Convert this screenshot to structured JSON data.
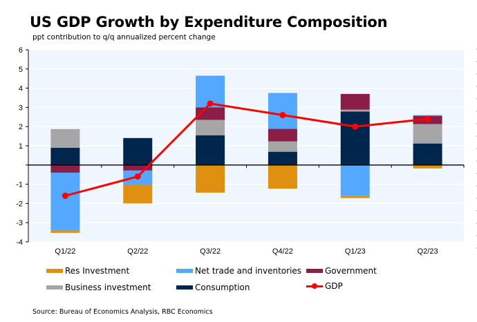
{
  "header": {
    "title": "US GDP Growth by Expenditure Composition",
    "subtitle": "ppt contribution to q/q annualized percent change"
  },
  "source": "Source: Bureau of Economics Analysis, RBC Economics",
  "chart_data": {
    "type": "bar",
    "stacked": true,
    "title": "US GDP Growth by Expenditure Composition",
    "subtitle": "ppt contribution to q/q annualized percent change",
    "xlabel": "",
    "ylabel": "",
    "ylim": [
      -4,
      6
    ],
    "yticks": [
      -4,
      -3,
      -2,
      -1,
      0,
      1,
      2,
      3,
      4,
      5,
      6
    ],
    "ytick_labels": [
      "-4",
      "-3",
      "-2",
      "-1",
      "",
      "1",
      "2",
      "3",
      "4",
      "5",
      "6"
    ],
    "grid": true,
    "legend_position": "bottom",
    "categories": [
      "Q1/22",
      "Q2/22",
      "Q3/22",
      "Q4/22",
      "Q1/23",
      "Q2/23"
    ],
    "series": [
      {
        "name": "Consumption",
        "color": "#00264d",
        "type": "bar",
        "values": [
          0.9,
          1.4,
          1.55,
          0.69,
          2.78,
          1.12
        ]
      },
      {
        "name": "Business investment",
        "color": "#a6a6a6",
        "type": "bar",
        "values": [
          0.97,
          0.02,
          0.8,
          0.54,
          0.1,
          1.01
        ]
      },
      {
        "name": "Government",
        "color": "#8b1e46",
        "type": "bar",
        "values": [
          -0.4,
          -0.29,
          0.65,
          0.65,
          0.82,
          0.43
        ]
      },
      {
        "name": "Net trade and inventories",
        "color": "#54a8ff",
        "type": "bar",
        "values": [
          -3.0,
          -0.76,
          1.65,
          1.87,
          -1.6,
          0.04
        ]
      },
      {
        "name": "Res Investment",
        "color": "#e09010",
        "type": "bar",
        "values": [
          -0.13,
          -0.95,
          -1.44,
          -1.23,
          -0.12,
          -0.18
        ]
      },
      {
        "name": "GDP",
        "color": "#ff0000",
        "type": "line",
        "values": [
          -1.6,
          -0.6,
          3.2,
          2.6,
          2.0,
          2.4
        ]
      }
    ],
    "legend": [
      {
        "name": "Res Investment",
        "color": "#e09010",
        "type": "bar"
      },
      {
        "name": "Net trade and inventories",
        "color": "#54a8ff",
        "type": "bar"
      },
      {
        "name": "Government",
        "color": "#8b1e46",
        "type": "bar"
      },
      {
        "name": "Business investment",
        "color": "#a6a6a6",
        "type": "bar"
      },
      {
        "name": "Consumption",
        "color": "#00264d",
        "type": "bar"
      },
      {
        "name": "GDP",
        "color": "#ff0000",
        "type": "line"
      }
    ]
  }
}
